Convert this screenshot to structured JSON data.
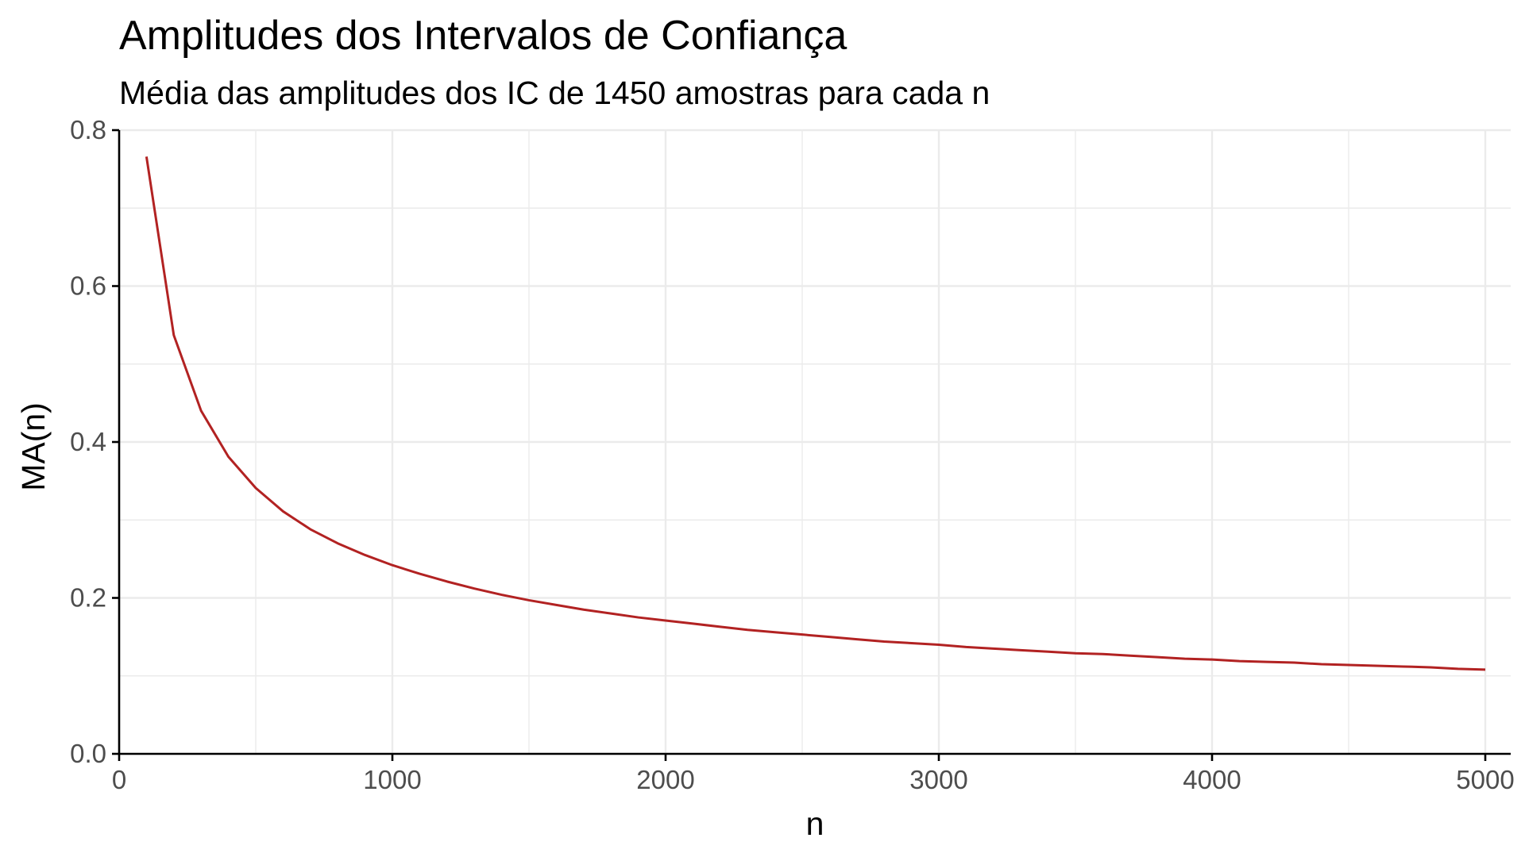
{
  "chart_data": {
    "type": "line",
    "title": "Amplitudes dos Intervalos de Confiança",
    "subtitle": "Média das amplitudes dos IC de 1450 amostras para cada n",
    "xlabel": "n",
    "ylabel": "MA(n)",
    "xlim": [
      0,
      5000
    ],
    "ylim": [
      0,
      0.8
    ],
    "x_ticks": [
      0,
      1000,
      2000,
      3000,
      4000,
      5000
    ],
    "x_tick_labels": [
      "0",
      "1000",
      "2000",
      "3000",
      "4000",
      "5000"
    ],
    "y_ticks": [
      0.0,
      0.2,
      0.4,
      0.6,
      0.8
    ],
    "y_tick_labels": [
      "0.0",
      "0.2",
      "0.4",
      "0.6",
      "0.8"
    ],
    "grid": true,
    "legend": "none",
    "series": [
      {
        "color": "#b22222",
        "x": [
          100,
          200,
          300,
          400,
          500,
          600,
          700,
          800,
          900,
          1000,
          1100,
          1200,
          1300,
          1400,
          1500,
          1600,
          1700,
          1800,
          1900,
          2000,
          2100,
          2200,
          2300,
          2400,
          2500,
          2600,
          2700,
          2800,
          2900,
          3000,
          3100,
          3200,
          3300,
          3400,
          3500,
          3600,
          3700,
          3800,
          3900,
          4000,
          4100,
          4200,
          4300,
          4400,
          4500,
          4600,
          4700,
          4800,
          4900,
          5000
        ],
        "y": [
          0.766,
          0.537,
          0.44,
          0.381,
          0.341,
          0.311,
          0.288,
          0.27,
          0.255,
          0.242,
          0.231,
          0.221,
          0.212,
          0.204,
          0.197,
          0.191,
          0.185,
          0.18,
          0.175,
          0.171,
          0.167,
          0.163,
          0.159,
          0.156,
          0.153,
          0.15,
          0.147,
          0.144,
          0.142,
          0.14,
          0.137,
          0.135,
          0.133,
          0.131,
          0.129,
          0.128,
          0.126,
          0.124,
          0.122,
          0.121,
          0.119,
          0.118,
          0.117,
          0.115,
          0.114,
          0.113,
          0.112,
          0.111,
          0.109,
          0.108
        ]
      }
    ]
  }
}
